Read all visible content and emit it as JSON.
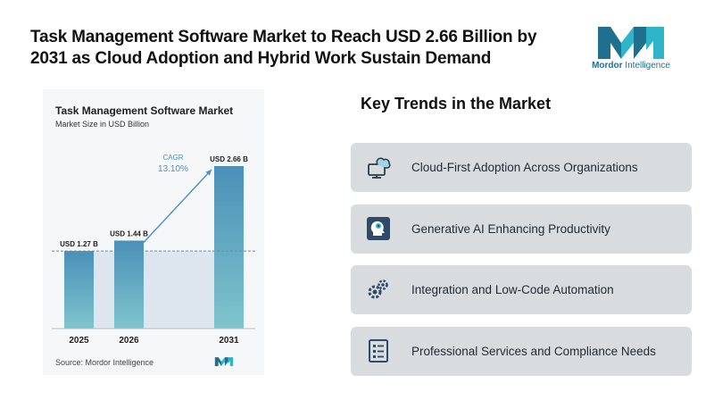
{
  "headline": "Task Management Software Market to Reach USD 2.66 Billion by 2031 as Cloud Adoption and Hybrid Work Sustain Demand",
  "brand": {
    "name_bold": "Mordor",
    "name_rest": " Intelligence",
    "colors": {
      "dark": "#1f6f8f",
      "light": "#2fb5c9"
    }
  },
  "chart_data": {
    "type": "bar",
    "title": "Task Management Software Market",
    "subtitle": "Market Size in USD Billion",
    "categories": [
      "2025",
      "2026",
      "2031"
    ],
    "values": [
      1.27,
      1.44,
      2.66
    ],
    "value_labels": [
      "USD 1.27 B",
      "USD 1.44 B",
      "USD 2.66 B"
    ],
    "cagr_label": "CAGR",
    "cagr_value": "13.10%",
    "ylim": [
      0,
      2.66
    ],
    "source": "Source: Mordor Intelligence",
    "colors": {
      "bar_top": "#4a90b8",
      "bar_bottom": "#7fc4cc",
      "shade": "#dde6ee",
      "cagr": "#4a90c2"
    }
  },
  "trends": {
    "title": "Key Trends in the Market",
    "items": [
      {
        "label": "Cloud-First Adoption Across Organizations",
        "icon": "cloud-computer-icon"
      },
      {
        "label": "Generative AI Enhancing Productivity",
        "icon": "ai-head-icon"
      },
      {
        "label": "Integration and Low-Code Automation",
        "icon": "gears-icon"
      },
      {
        "label": "Professional Services and Compliance Needs",
        "icon": "checklist-icon"
      }
    ]
  }
}
